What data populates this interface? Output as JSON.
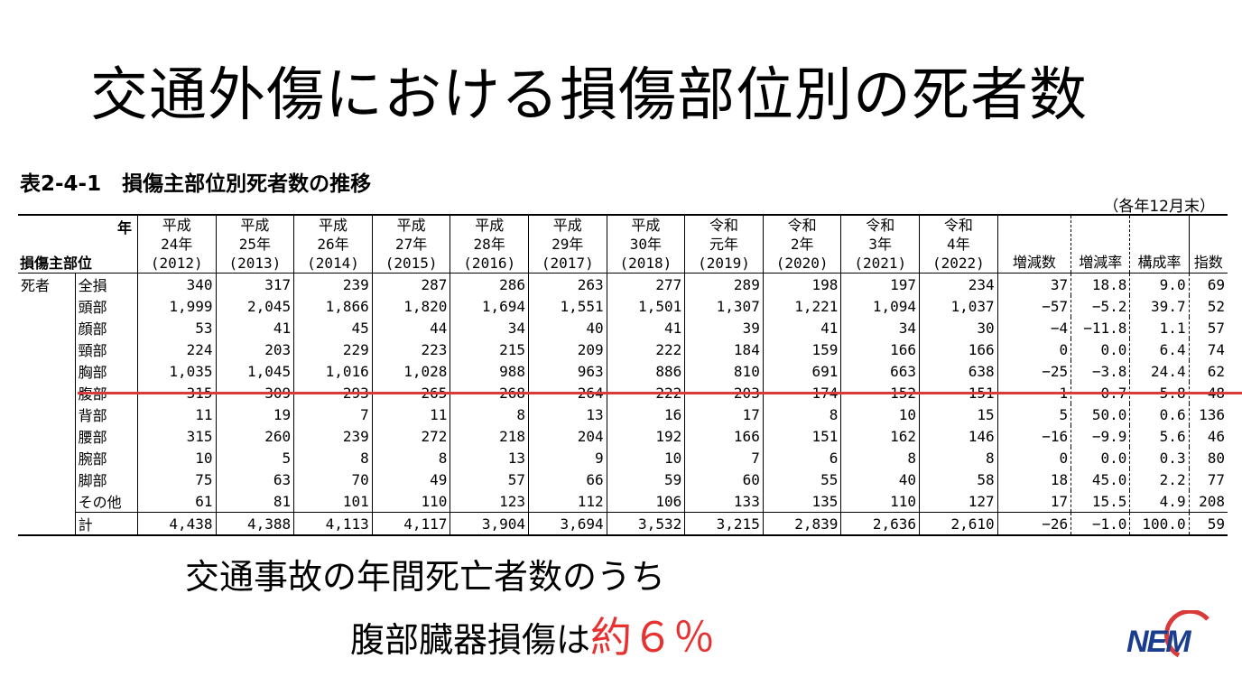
{
  "slide": {
    "title": "交通外傷における損傷部位別の死者数",
    "table_caption": "表2-4-1　損傷主部位別死者数の推移",
    "table_note": "（各年12月末）",
    "summary_line1": "交通事故の年間死亡者数のうち",
    "summary_line2_prefix": "腹部臓器損傷は",
    "summary_line2_highlight": "約６％",
    "highlight_color": "#e83232",
    "logo_text": "NEM"
  },
  "table": {
    "corner_year": "年",
    "corner_label": "損傷主部位",
    "year_headers": [
      [
        "平成",
        "24年",
        "(2012)"
      ],
      [
        "平成",
        "25年",
        "(2013)"
      ],
      [
        "平成",
        "26年",
        "(2014)"
      ],
      [
        "平成",
        "27年",
        "(2015)"
      ],
      [
        "平成",
        "28年",
        "(2016)"
      ],
      [
        "平成",
        "29年",
        "(2017)"
      ],
      [
        "平成",
        "30年",
        "(2018)"
      ],
      [
        "令和",
        "元年",
        "(2019)"
      ],
      [
        "令和",
        "2年",
        "(2020)"
      ],
      [
        "令和",
        "3年",
        "(2021)"
      ],
      [
        "令和",
        "4年",
        "(2022)"
      ]
    ],
    "extra_headers": [
      "増減数",
      "増減率",
      "構成率",
      "指数"
    ],
    "category": "死者",
    "rows": [
      {
        "part": "全損",
        "values": [
          "340",
          "317",
          "239",
          "287",
          "286",
          "263",
          "277",
          "289",
          "198",
          "197",
          "234"
        ],
        "extras": [
          "37",
          "18.8",
          "9.0",
          "69"
        ]
      },
      {
        "part": "頭部",
        "values": [
          "1,999",
          "2,045",
          "1,866",
          "1,820",
          "1,694",
          "1,551",
          "1,501",
          "1,307",
          "1,221",
          "1,094",
          "1,037"
        ],
        "extras": [
          "−57",
          "−5.2",
          "39.7",
          "52"
        ]
      },
      {
        "part": "顔部",
        "values": [
          "53",
          "41",
          "45",
          "44",
          "34",
          "40",
          "41",
          "39",
          "41",
          "34",
          "30"
        ],
        "extras": [
          "−4",
          "−11.8",
          "1.1",
          "57"
        ]
      },
      {
        "part": "頸部",
        "values": [
          "224",
          "203",
          "229",
          "223",
          "215",
          "209",
          "222",
          "184",
          "159",
          "166",
          "166"
        ],
        "extras": [
          "0",
          "0.0",
          "6.4",
          "74"
        ]
      },
      {
        "part": "胸部",
        "values": [
          "1,035",
          "1,045",
          "1,016",
          "1,028",
          "988",
          "963",
          "886",
          "810",
          "691",
          "663",
          "638"
        ],
        "extras": [
          "−25",
          "−3.8",
          "24.4",
          "62"
        ]
      },
      {
        "part": "腹部",
        "values": [
          "315",
          "309",
          "293",
          "265",
          "268",
          "264",
          "222",
          "203",
          "174",
          "152",
          "151"
        ],
        "extras": [
          "−1",
          "−0.7",
          "5.8",
          "48"
        ]
      },
      {
        "part": "背部",
        "values": [
          "11",
          "19",
          "7",
          "11",
          "8",
          "13",
          "16",
          "17",
          "8",
          "10",
          "15"
        ],
        "extras": [
          "5",
          "50.0",
          "0.6",
          "136"
        ]
      },
      {
        "part": "腰部",
        "values": [
          "315",
          "260",
          "239",
          "272",
          "218",
          "204",
          "192",
          "166",
          "151",
          "162",
          "146"
        ],
        "extras": [
          "−16",
          "−9.9",
          "5.6",
          "46"
        ]
      },
      {
        "part": "腕部",
        "values": [
          "10",
          "5",
          "8",
          "8",
          "13",
          "9",
          "10",
          "7",
          "6",
          "8",
          "8"
        ],
        "extras": [
          "0",
          "0.0",
          "0.3",
          "80"
        ]
      },
      {
        "part": "脚部",
        "values": [
          "75",
          "63",
          "70",
          "49",
          "57",
          "66",
          "59",
          "60",
          "55",
          "40",
          "58"
        ],
        "extras": [
          "18",
          "45.0",
          "2.2",
          "77"
        ]
      },
      {
        "part": "その他",
        "values": [
          "61",
          "81",
          "101",
          "110",
          "123",
          "112",
          "106",
          "133",
          "135",
          "110",
          "127"
        ],
        "extras": [
          "17",
          "15.5",
          "4.9",
          "208"
        ]
      }
    ],
    "total": {
      "part": "計",
      "values": [
        "4,438",
        "4,388",
        "4,113",
        "4,117",
        "3,904",
        "3,694",
        "3,532",
        "3,215",
        "2,839",
        "2,636",
        "2,610"
      ],
      "extras": [
        "−26",
        "−1.0",
        "100.0",
        "59"
      ]
    }
  }
}
